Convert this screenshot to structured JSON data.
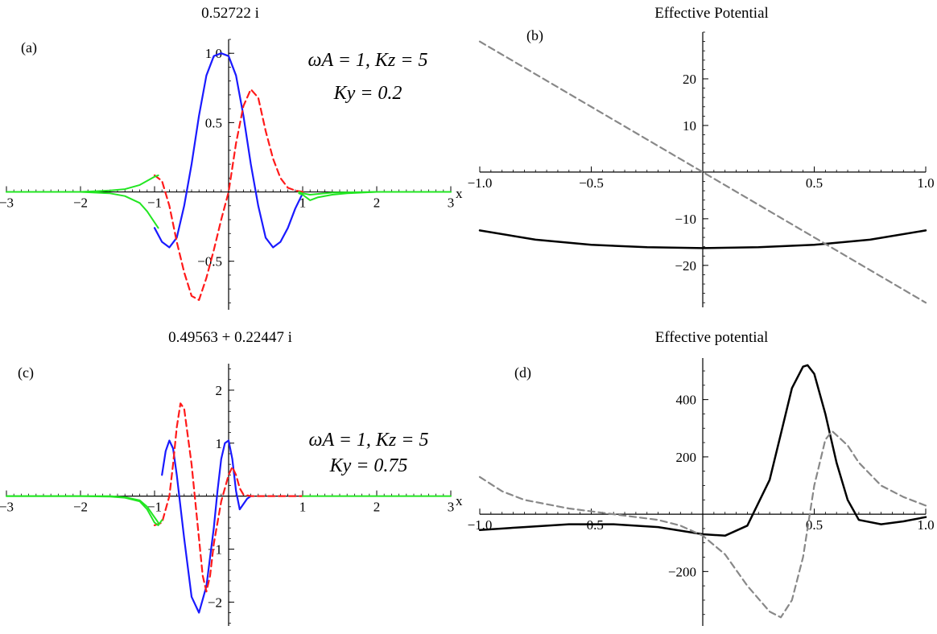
{
  "colors": {
    "blue": "#1a1aff",
    "red": "#ff1a1a",
    "green": "#22e622",
    "black": "#000000",
    "gray": "#888888"
  },
  "chart_data": [
    {
      "panel": "(a)",
      "type": "line",
      "title": "0.52722 i",
      "xlabel": "x",
      "xlim": [
        -3,
        3
      ],
      "ylim": [
        -0.85,
        1.1
      ],
      "xticks": [
        "−3",
        "−2",
        "−1",
        "1",
        "2",
        "3"
      ],
      "yticks": [
        "−0.5",
        "0.5",
        "1.0"
      ],
      "annotation": [
        "ωA = 1, Kz = 5",
        "Ky = 0.2"
      ],
      "series": [
        {
          "x": [
            -1,
            -0.9,
            -0.8,
            -0.7,
            -0.6,
            -0.5,
            -0.4,
            -0.3,
            -0.2,
            -0.1,
            0,
            0.1,
            0.2,
            0.3,
            0.4,
            0.5,
            0.6,
            0.7,
            0.8,
            0.9,
            1
          ],
          "y": [
            -0.26,
            -0.36,
            -0.4,
            -0.33,
            -0.1,
            0.2,
            0.55,
            0.84,
            0.98,
            1.0,
            0.98,
            0.84,
            0.55,
            0.2,
            -0.1,
            -0.33,
            -0.4,
            -0.36,
            -0.26,
            -0.12,
            -0.01
          ]
        },
        {
          "x": [
            -1,
            -0.9,
            -0.8,
            -0.7,
            -0.6,
            -0.5,
            -0.4,
            -0.3,
            -0.2,
            -0.1,
            0,
            0.1,
            0.2,
            0.3,
            0.4,
            0.5,
            0.6,
            0.7,
            0.8,
            0.9,
            1
          ],
          "y": [
            0.12,
            0.08,
            -0.1,
            -0.36,
            -0.58,
            -0.75,
            -0.78,
            -0.62,
            -0.42,
            -0.2,
            0.0,
            0.35,
            0.62,
            0.74,
            0.68,
            0.44,
            0.24,
            0.1,
            0.03,
            0.01,
            0.0
          ]
        },
        {
          "x": [
            -3,
            -2,
            -1.6,
            -1.4,
            -1.2,
            -1.1,
            -1,
            -0.95
          ],
          "y": [
            0,
            0,
            -0.01,
            -0.03,
            -0.08,
            -0.14,
            -0.22,
            -0.26
          ]
        },
        {
          "x": [
            -3,
            -2,
            -1.6,
            -1.4,
            -1.2,
            -1.1,
            -1,
            -0.95
          ],
          "y": [
            0,
            0,
            0.01,
            0.02,
            0.05,
            0.08,
            0.11,
            0.12
          ]
        },
        {
          "x": [
            0.95,
            1,
            1.1,
            1.2,
            1.4,
            1.6,
            2,
            3
          ],
          "y": [
            -0.01,
            -0.02,
            -0.06,
            -0.04,
            -0.02,
            -0.01,
            0,
            0
          ]
        },
        {
          "x": [
            0.95,
            1,
            1.1,
            1.2,
            1.4,
            2,
            3
          ],
          "y": [
            0.0,
            -0.01,
            -0.02,
            -0.015,
            -0.005,
            0,
            0
          ]
        }
      ]
    },
    {
      "panel": "(b)",
      "type": "line",
      "title": "Effective Potential",
      "xlim": [
        -1,
        1
      ],
      "ylim": [
        -29,
        30
      ],
      "xticks": [
        "−1.0",
        "−0.5",
        "0.5",
        "1.0"
      ],
      "yticks": [
        "−20",
        "−10",
        "10",
        "20"
      ],
      "series": [
        {
          "x": [
            -1,
            -0.75,
            -0.5,
            -0.25,
            0,
            0.25,
            0.5,
            0.75,
            1
          ],
          "y": [
            -12.5,
            -14.5,
            -15.6,
            -16.1,
            -16.3,
            -16.1,
            -15.6,
            -14.5,
            -12.5
          ]
        },
        {
          "x": [
            -1,
            0,
            1
          ],
          "y": [
            28,
            0,
            -28
          ]
        }
      ]
    },
    {
      "panel": "(c)",
      "type": "line",
      "title": "0.49563 + 0.22447 i",
      "xlabel": "x",
      "xlim": [
        -3,
        3
      ],
      "ylim": [
        -2.45,
        2.5
      ],
      "xticks": [
        "−3",
        "−2",
        "−1",
        "1",
        "2",
        "3"
      ],
      "yticks": [
        "−2",
        "−1",
        "1",
        "2"
      ],
      "annotation": [
        "ωA = 1, Kz = 5",
        "Ky = 0.75"
      ],
      "series": [
        {
          "x": [
            -0.9,
            -0.85,
            -0.8,
            -0.75,
            -0.7,
            -0.6,
            -0.5,
            -0.4,
            -0.3,
            -0.2,
            -0.15,
            -0.1,
            -0.05,
            0,
            0.05,
            0.1,
            0.15,
            0.2,
            0.25,
            0.3
          ],
          "y": [
            0.4,
            0.85,
            1.05,
            0.9,
            0.4,
            -0.8,
            -1.9,
            -2.2,
            -1.7,
            -0.6,
            0.1,
            0.7,
            1.0,
            1.05,
            0.7,
            0.1,
            -0.25,
            -0.15,
            -0.05,
            0.0
          ]
        },
        {
          "x": [
            -1,
            -0.9,
            -0.8,
            -0.75,
            -0.7,
            -0.65,
            -0.6,
            -0.5,
            -0.4,
            -0.35,
            -0.3,
            -0.25,
            -0.2,
            -0.1,
            0,
            0.05,
            0.1,
            0.15,
            0.2,
            0.3,
            0.5,
            1
          ],
          "y": [
            -0.55,
            -0.5,
            0.0,
            0.6,
            1.3,
            1.75,
            1.65,
            0.6,
            -0.8,
            -1.5,
            -1.8,
            -1.5,
            -0.9,
            -0.1,
            0.4,
            0.55,
            0.4,
            0.15,
            0.03,
            0,
            0,
            0
          ]
        },
        {
          "x": [
            -3,
            -2,
            -1.6,
            -1.4,
            -1.2,
            -1.1,
            -1,
            -0.95,
            -0.9
          ],
          "y": [
            0,
            0,
            -0.01,
            -0.03,
            -0.1,
            -0.25,
            -0.5,
            -0.55,
            -0.45
          ]
        },
        {
          "x": [
            -3,
            -2,
            -1.6,
            -1.4,
            -1.2,
            -1.1,
            -1,
            -0.95
          ],
          "y": [
            0,
            0,
            0,
            -0.02,
            -0.08,
            -0.2,
            -0.4,
            -0.5
          ]
        },
        {
          "x": [
            1,
            2,
            3
          ],
          "y": [
            0,
            0,
            0
          ]
        }
      ]
    },
    {
      "panel": "(d)",
      "type": "line",
      "title": "Effective potential",
      "xlim": [
        -1,
        1
      ],
      "ylim": [
        -390,
        545
      ],
      "xticks": [
        "−1.0",
        "−0.5",
        "0.5",
        "1.0"
      ],
      "yticks": [
        "−200",
        "200",
        "400"
      ],
      "series": [
        {
          "x": [
            -1,
            -0.8,
            -0.6,
            -0.4,
            -0.2,
            0,
            0.1,
            0.2,
            0.3,
            0.35,
            0.4,
            0.45,
            0.47,
            0.5,
            0.55,
            0.6,
            0.65,
            0.7,
            0.8,
            0.9,
            1
          ],
          "y": [
            -55,
            -45,
            -35,
            -35,
            -45,
            -70,
            -75,
            -40,
            120,
            280,
            440,
            515,
            520,
            490,
            350,
            180,
            50,
            -20,
            -35,
            -25,
            -10
          ]
        },
        {
          "x": [
            -1,
            -0.9,
            -0.8,
            -0.6,
            -0.4,
            -0.2,
            -0.1,
            0,
            0.1,
            0.2,
            0.3,
            0.35,
            0.4,
            0.45,
            0.5,
            0.55,
            0.58,
            0.65,
            0.7,
            0.8,
            0.9,
            1
          ],
          "y": [
            130,
            80,
            50,
            20,
            0,
            -20,
            -40,
            -75,
            -140,
            -250,
            -340,
            -360,
            -300,
            -150,
            100,
            260,
            290,
            240,
            180,
            100,
            60,
            30
          ]
        }
      ]
    }
  ]
}
